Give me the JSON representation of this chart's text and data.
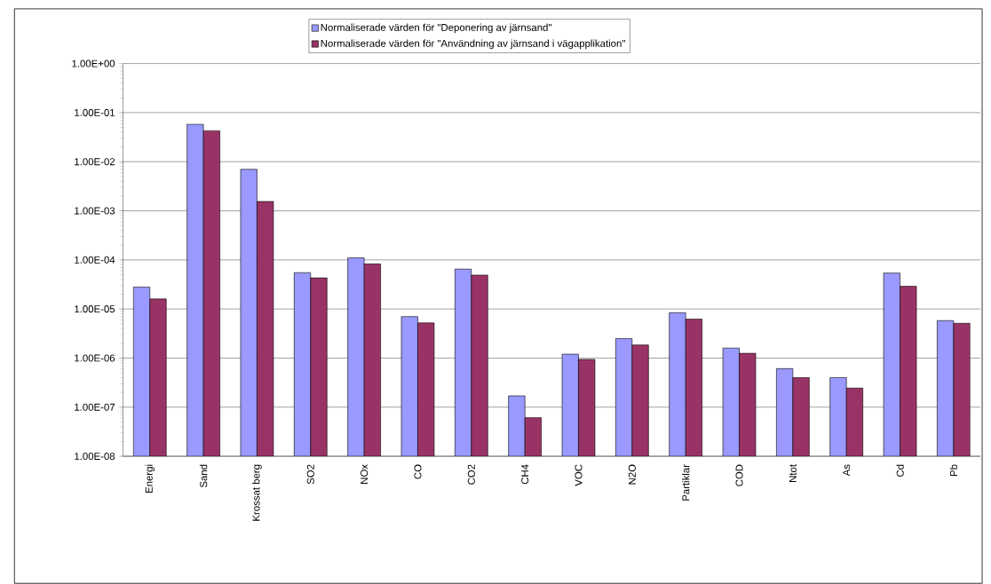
{
  "chart_data": {
    "type": "bar",
    "log": "y",
    "grid": "y",
    "legend": "top",
    "categories": [
      "Energi",
      "Sand",
      "Krossat berg",
      "SO2",
      "NOx",
      "CO",
      "CO2",
      "CH4",
      "VOC",
      "N2O",
      "Partiklar",
      "COD",
      "Ntot",
      "As",
      "Cd",
      "Pb"
    ],
    "series": [
      {
        "name": "Normaliserade värden för \"Deponering av järnsand\"",
        "color": "#9999ff",
        "values": [
          2.8e-05,
          0.058,
          0.007,
          5.5e-05,
          0.00011,
          7e-06,
          6.5e-05,
          1.7e-07,
          1.2e-06,
          2.5e-06,
          8.4e-06,
          1.6e-06,
          6.1e-07,
          4e-07,
          5.4e-05,
          5.8e-06
        ]
      },
      {
        "name": "Normaliserade värden för \"Användning av järnsand i vägapplikation\"",
        "color": "#993366",
        "values": [
          1.6e-05,
          0.043,
          0.00155,
          4.3e-05,
          8.3e-05,
          5.2e-06,
          4.9e-05,
          6.1e-08,
          9.4e-07,
          1.85e-06,
          6.2e-06,
          1.25e-06,
          4e-07,
          2.45e-07,
          2.9e-05,
          5.1e-06
        ]
      }
    ],
    "ylim": [
      1e-08,
      1
    ],
    "yticks": [
      {
        "value": 1e-08,
        "label": "1.00E-08"
      },
      {
        "value": 1e-07,
        "label": "1.00E-07"
      },
      {
        "value": 1e-06,
        "label": "1.00E-06"
      },
      {
        "value": 1e-05,
        "label": "1.00E-05"
      },
      {
        "value": 0.0001,
        "label": "1.00E-04"
      },
      {
        "value": 0.001,
        "label": "1.00E-03"
      },
      {
        "value": 0.01,
        "label": "1.00E-02"
      },
      {
        "value": 0.1,
        "label": "1.00E-01"
      },
      {
        "value": 1,
        "label": "1.00E+00"
      }
    ]
  }
}
